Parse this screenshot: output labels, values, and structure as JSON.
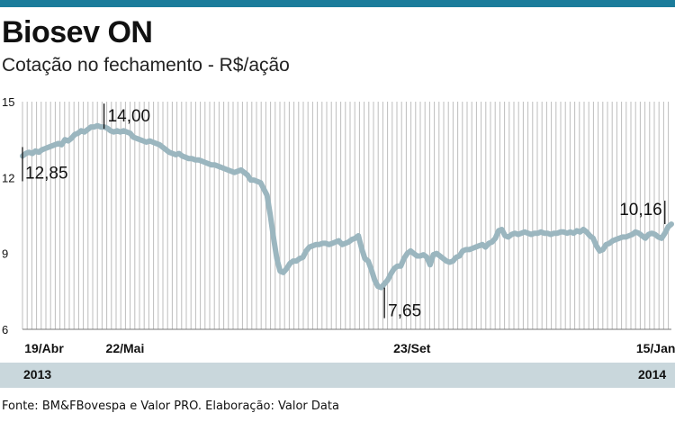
{
  "header": {
    "title": "Biosev ON",
    "subtitle": "Cotação no fechamento - R$/ação"
  },
  "footer": {
    "source": "Fonte: BM&FBovespa e Valor PRO. Elaboração: Valor Data",
    "year_left": "2013",
    "year_right": "2014"
  },
  "colors": {
    "top_bar": "#1b7c9b",
    "line": "#9bb6bf",
    "grid": "#bdbdbd",
    "band": "#c9d7dc"
  },
  "chart_data": {
    "type": "line",
    "ylim": [
      6,
      15
    ],
    "yticks": [
      6,
      9,
      12,
      15
    ],
    "xtick_labels": [
      {
        "label": "19/Abr",
        "index": 0
      },
      {
        "label": "22/Mai",
        "index": 24
      },
      {
        "label": "23/Set",
        "index": 112
      },
      {
        "label": "15/Jan",
        "index": 192
      }
    ],
    "annotations": [
      {
        "label": "12,85",
        "index": 0,
        "value": 12.85
      },
      {
        "label": "14,00",
        "index": 25,
        "value": 14.0
      },
      {
        "label": "7,65",
        "index": 111,
        "value": 7.65
      },
      {
        "label": "10,16",
        "index": 197,
        "value": 10.16
      }
    ],
    "series": [
      {
        "values": [
          12.85,
          12.95,
          13.0,
          12.95,
          13.05,
          13.0,
          13.1,
          13.15,
          13.2,
          13.25,
          13.3,
          13.35,
          13.3,
          13.5,
          13.45,
          13.55,
          13.7,
          13.75,
          13.85,
          13.8,
          13.9,
          14.0,
          14.0,
          14.05,
          14.0,
          14.0,
          13.95,
          13.85,
          13.8,
          13.85,
          13.8,
          13.85,
          13.8,
          13.75,
          13.6,
          13.55,
          13.5,
          13.45,
          13.4,
          13.45,
          13.4,
          13.35,
          13.3,
          13.2,
          13.1,
          13.0,
          12.95,
          12.9,
          12.95,
          12.85,
          12.8,
          12.75,
          12.75,
          12.7,
          12.7,
          12.65,
          12.6,
          12.55,
          12.5,
          12.5,
          12.45,
          12.4,
          12.35,
          12.3,
          12.25,
          12.2,
          12.25,
          12.3,
          12.2,
          12.1,
          11.9,
          11.9,
          11.85,
          11.8,
          11.55,
          11.3,
          10.5,
          9.6,
          8.8,
          8.3,
          8.25,
          8.4,
          8.6,
          8.7,
          8.7,
          8.8,
          8.85,
          9.1,
          9.25,
          9.3,
          9.35,
          9.35,
          9.4,
          9.4,
          9.35,
          9.4,
          9.45,
          9.5,
          9.35,
          9.4,
          9.45,
          9.55,
          9.6,
          9.7,
          9.2,
          8.8,
          8.7,
          8.35,
          7.95,
          7.7,
          7.65,
          7.8,
          7.95,
          8.2,
          8.4,
          8.5,
          8.5,
          8.8,
          9.0,
          9.1,
          9.0,
          8.9,
          8.9,
          8.95,
          8.85,
          8.55,
          8.95,
          9.0,
          8.9,
          8.8,
          8.7,
          8.65,
          8.7,
          8.85,
          8.9,
          9.1,
          9.15,
          9.15,
          9.2,
          9.25,
          9.3,
          9.35,
          9.25,
          9.4,
          9.45,
          9.6,
          9.9,
          9.95,
          9.7,
          9.65,
          9.75,
          9.8,
          9.75,
          9.8,
          9.85,
          9.8,
          9.75,
          9.8,
          9.8,
          9.85,
          9.8,
          9.8,
          9.75,
          9.8,
          9.8,
          9.85,
          9.85,
          9.8,
          9.85,
          9.8,
          9.9,
          9.85,
          9.95,
          9.85,
          9.7,
          9.6,
          9.3,
          9.1,
          9.15,
          9.35,
          9.4,
          9.5,
          9.55,
          9.6,
          9.65,
          9.65,
          9.7,
          9.75,
          9.85,
          9.8,
          9.7,
          9.6,
          9.75,
          9.8,
          9.75,
          9.65,
          9.6,
          9.8,
          10.05,
          10.16
        ]
      }
    ]
  }
}
